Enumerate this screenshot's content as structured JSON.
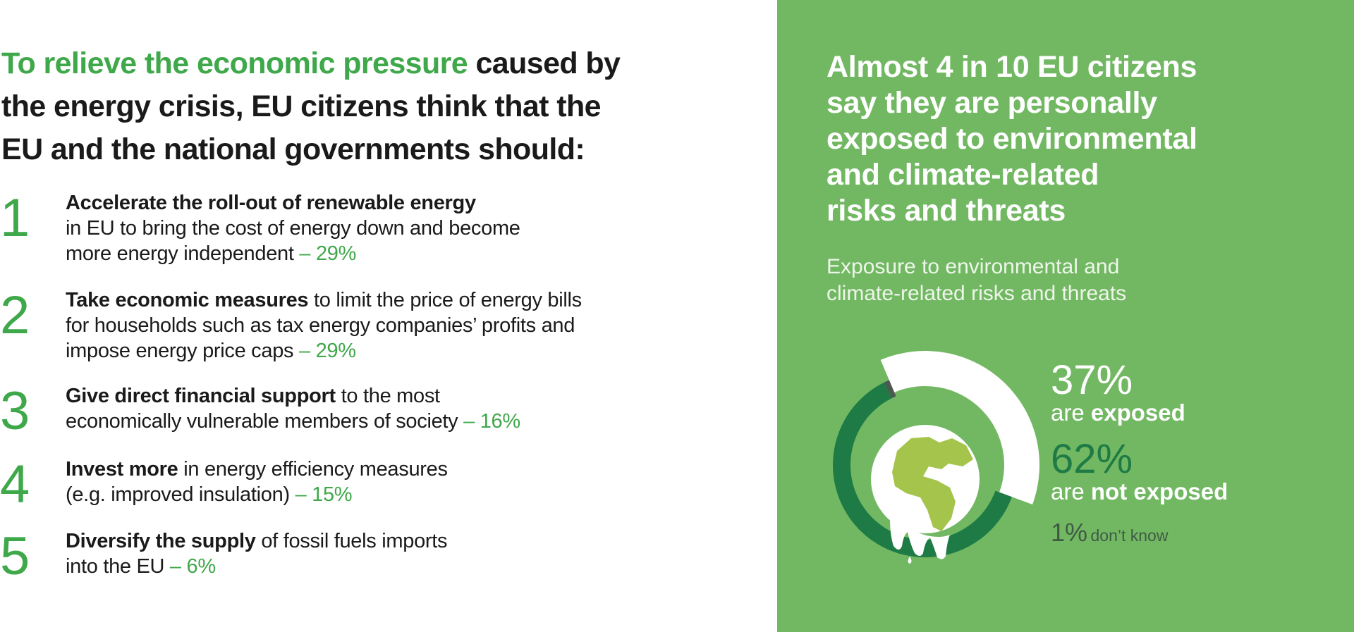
{
  "left": {
    "heading": {
      "highlight": "To relieve the economic pressure",
      "rest_line1": " caused by",
      "line2": "the energy crisis, EU citizens think that the",
      "line3": "EU and the national governments should:"
    },
    "items": [
      {
        "number": "1",
        "bold": "Accelerate the roll-out of renewable energy",
        "line1": "",
        "line2": "in EU to bring the cost of energy down and become",
        "line3": "more energy independent",
        "pct": " – 29%"
      },
      {
        "number": "2",
        "bold": "Take economic measures",
        "line1": " to limit the price of energy bills",
        "line2": "for households such as tax energy companies’ profits and",
        "line3": "impose energy price caps",
        "pct": " – 29%"
      },
      {
        "number": "3",
        "bold": "Give direct financial support",
        "line1": " to the most",
        "line2": "economically vulnerable members of society",
        "pct": " – 16%"
      },
      {
        "number": "4",
        "bold": "Invest more",
        "line1": " in energy efficiency measures",
        "line2": "(e.g. improved insulation)",
        "pct": " – 15%"
      },
      {
        "number": "5",
        "bold": "Diversify the supply",
        "line1": " of fossil fuels imports",
        "line2": "into the EU",
        "pct": " – 6%"
      }
    ]
  },
  "right": {
    "title": "Almost 4 in 10 EU citizens\nsay they are personally\nexposed to environmental\nand climate-related\nrisks and threats",
    "subtitle": "Exposure to environmental and\nclimate-related risks and threats"
  },
  "chart_data": {
    "type": "pie",
    "title": "Exposure to environmental and climate-related risks and threats",
    "slices": [
      {
        "label_pre": "are ",
        "label_bold": "exposed",
        "value": 37,
        "display": "37%",
        "color": "#ffffff"
      },
      {
        "label_pre": "are ",
        "label_bold": "not exposed",
        "value": 62,
        "display": "62%",
        "color": "#1e7b45"
      },
      {
        "label_pre": "don’t know",
        "label_bold": "",
        "value": 1,
        "display": "1%",
        "color": "#4a5a50"
      }
    ]
  },
  "colors": {
    "accent": "#3fa84a",
    "panel": "#72b863",
    "dark_green": "#1e7b45",
    "land": "#a5c44c"
  }
}
